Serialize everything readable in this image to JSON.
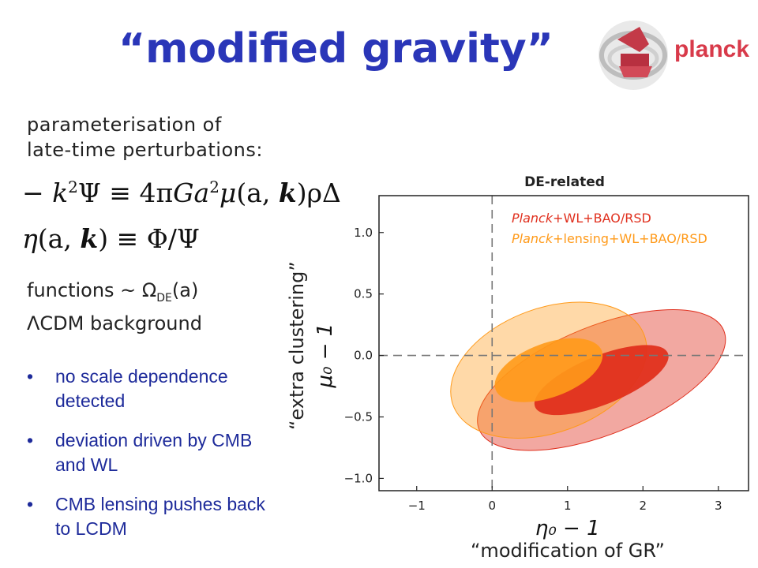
{
  "slide": {
    "title": "“modified gravity”",
    "logo_text": "planck",
    "intro_line1": "parameterisation of",
    "intro_line2": "late-time perturbations:",
    "functions_prefix": "functions ~ Ω",
    "functions_sub": "DE",
    "functions_suffix": "(a)",
    "background": "ΛCDM background",
    "bullets": [
      "no scale dependence detected",
      "deviation driven by CMB and WL",
      "CMB lensing pushes back to LCDM"
    ],
    "x_caption": "“modification of GR”",
    "y_caption": "“extra clustering”"
  },
  "equations": {
    "eq1_minus": "− ",
    "eq1_k": "k",
    "eq1_sup": "2",
    "eq1_psi": "Ψ ≡ 4π",
    "eq1_G": "Ga",
    "eq1_sup2": "2",
    "eq1_mu": "μ",
    "eq1_paren": "(a, ",
    "eq1_kbold": "k",
    "eq1_end": ")ρΔ",
    "eq2_eta": "η",
    "eq2_paren": "(a, ",
    "eq2_kbold": "k",
    "eq2_end": ") ≡ Φ/Ψ"
  },
  "colors": {
    "title": "#2a36b8",
    "bullet_text": "#1d2a9a",
    "red_series": "#e0301e",
    "orange_series": "#ff9a1a"
  },
  "chart_data": {
    "type": "scatter",
    "title": "DE-related",
    "xlabel": "η₀ − 1",
    "ylabel": "μ₀ − 1",
    "xlim": [
      -1.5,
      3.4
    ],
    "ylim": [
      -1.1,
      1.3
    ],
    "xticks": [
      "−1",
      "0",
      "1",
      "2",
      "3"
    ],
    "xtick_values": [
      -1,
      0,
      1,
      2,
      3
    ],
    "yticks": [
      "1.0",
      "0.5",
      "0.0",
      "−0.5",
      "−1.0"
    ],
    "ytick_values": [
      1.0,
      0.5,
      0.0,
      -0.5,
      -1.0
    ],
    "reference_lines": {
      "x": 0,
      "y": 0
    },
    "legend_position": "top-right",
    "series": [
      {
        "name_prefix": "Planck",
        "name_suffix": "+WL+BAO/RSD",
        "color": "#e0301e",
        "center": [
          1.45,
          -0.2
        ],
        "inner_semi_axes": [
          0.95,
          0.09
        ],
        "outer_semi_axes": [
          1.75,
          0.2
        ],
        "angle_deg": -22
      },
      {
        "name_prefix": "Planck",
        "name_suffix": "+lensing+WL+BAO/RSD",
        "color": "#ff9a1a",
        "center": [
          0.75,
          -0.12
        ],
        "inner_semi_axes": [
          0.75,
          0.1
        ],
        "outer_semi_axes": [
          1.35,
          0.23
        ],
        "angle_deg": -20
      }
    ]
  }
}
